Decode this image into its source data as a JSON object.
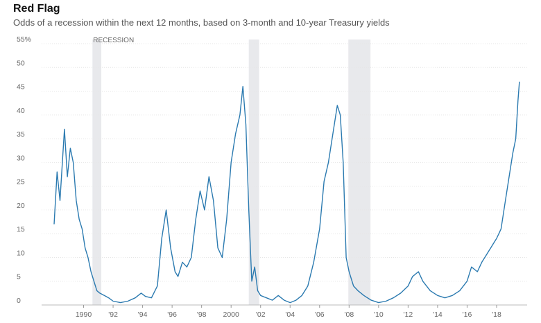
{
  "header": {
    "title": "Red Flag",
    "subtitle": "Odds of a recession within the next 12 months, based on 3-month and 10-year Treasury yields"
  },
  "colors": {
    "line": "#2b7ab0",
    "recession": "#e8e9ec"
  },
  "chart_data": {
    "type": "line",
    "title": "Red Flag",
    "subtitle": "Odds of a recession within the next 12 months, based on 3-month and 10-year Treasury yields",
    "xlabel": "",
    "ylabel": "",
    "xlim": [
      1988,
      2019.6
    ],
    "ylim": [
      0,
      55
    ],
    "y_ticks": [
      0,
      5,
      10,
      15,
      20,
      25,
      30,
      35,
      40,
      45,
      50,
      55
    ],
    "y_tick_labels": [
      "0",
      "5",
      "10",
      "15",
      "20",
      "25",
      "30",
      "35",
      "40",
      "45",
      "50",
      "55%"
    ],
    "x_ticks": [
      1990,
      1992,
      1994,
      1996,
      1998,
      2000,
      2002,
      2004,
      2006,
      2008,
      2010,
      2012,
      2014,
      2016,
      2018
    ],
    "x_tick_labels": [
      "1990",
      "'92",
      "'94",
      "'96",
      "'98",
      "2000",
      "'02",
      "'04",
      "'06",
      "'08",
      "'10",
      "'12",
      "'14",
      "'16",
      "'18"
    ],
    "grid": true,
    "recessions": [
      {
        "label": "RECESSION",
        "start": 1990.6,
        "end": 1991.2
      },
      {
        "label": "",
        "start": 2001.2,
        "end": 2001.9
      },
      {
        "label": "",
        "start": 2007.95,
        "end": 2009.45
      }
    ],
    "series": [
      {
        "x": [
          1988.0,
          1988.2,
          1988.4,
          1988.7,
          1988.9,
          1989.1,
          1989.3,
          1989.5,
          1989.7,
          1989.9,
          1990.1,
          1990.3,
          1990.5,
          1990.7,
          1990.9,
          1991.1,
          1991.4,
          1991.7,
          1992.0,
          1992.5,
          1993.0,
          1993.5,
          1993.9,
          1994.2,
          1994.6,
          1995.0,
          1995.3,
          1995.6,
          1995.9,
          1996.2,
          1996.4,
          1996.7,
          1997.0,
          1997.3,
          1997.6,
          1997.9,
          1998.2,
          1998.5,
          1998.8,
          1999.1,
          1999.4,
          1999.7,
          2000.0,
          2000.3,
          2000.6,
          2000.8,
          2001.0,
          2001.2,
          2001.4,
          2001.6,
          2001.8,
          2002.0,
          2002.4,
          2002.8,
          2003.2,
          2003.6,
          2004.0,
          2004.4,
          2004.8,
          2005.2,
          2005.6,
          2006.0,
          2006.3,
          2006.6,
          2006.9,
          2007.2,
          2007.4,
          2007.6,
          2007.8,
          2008.0,
          2008.3,
          2008.6,
          2009.0,
          2009.5,
          2010.0,
          2010.5,
          2011.0,
          2011.5,
          2012.0,
          2012.3,
          2012.7,
          2013.0,
          2013.5,
          2014.0,
          2014.5,
          2015.0,
          2015.5,
          2016.0,
          2016.3,
          2016.7,
          2017.0,
          2017.4,
          2017.8,
          2018.0,
          2018.3,
          2018.6,
          2018.9,
          2019.1,
          2019.3,
          2019.45,
          2019.55
        ],
        "y": [
          17,
          28,
          22,
          37,
          27,
          33,
          30,
          22,
          18,
          16,
          12,
          10,
          7,
          5,
          3,
          2.5,
          2,
          1.5,
          0.8,
          0.5,
          0.8,
          1.5,
          2.5,
          1.8,
          1.5,
          4,
          14,
          20,
          12,
          7,
          6,
          9,
          8,
          10,
          18,
          24,
          20,
          27,
          22,
          12,
          10,
          18,
          30,
          36,
          40,
          46,
          38,
          20,
          5,
          8,
          3,
          2,
          1.5,
          1,
          2,
          1,
          0.5,
          1,
          2,
          4,
          9,
          16,
          26,
          30,
          36,
          42,
          40,
          30,
          10,
          7,
          4,
          3,
          2,
          1,
          0.5,
          0.8,
          1.5,
          2.5,
          4,
          6,
          7,
          5,
          3,
          2,
          1.5,
          2,
          3,
          5,
          8,
          7,
          9,
          11,
          13,
          14,
          16,
          22,
          28,
          32,
          35,
          43,
          47
        ]
      }
    ]
  }
}
